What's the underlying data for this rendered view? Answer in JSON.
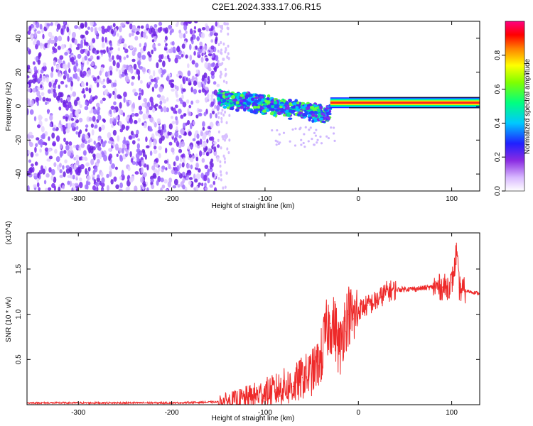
{
  "title": "C2E1.2024.333.17.06.R15",
  "colors": {
    "snr_line": "#ee2a2a",
    "scatter_purple": "#7b2bf0",
    "band_core": "#ff2020"
  },
  "chart_data": [
    {
      "type": "heatmap",
      "title": "C2E1.2024.333.17.06.R15",
      "xlabel": "Height of straight line (km)",
      "ylabel": "Frequency (Hz)",
      "xlim": [
        -355,
        130
      ],
      "ylim": [
        -50,
        50
      ],
      "xticks": [
        -300,
        -200,
        -100,
        0,
        100
      ],
      "yticks": [
        -40,
        -20,
        0,
        20,
        40
      ],
      "colorbar": {
        "label": "Normalized spectral amplitude",
        "range": [
          0,
          1
        ],
        "ticks": [
          "0.0",
          "0.2",
          "0.4",
          "0.6",
          "0.8"
        ],
        "colormap": "rainbow (white-violet-blue-cyan-green-yellow-red-magenta)"
      },
      "regions": [
        {
          "x_range": [
            -355,
            -150
          ],
          "freq_range": [
            -50,
            50
          ],
          "amplitude": "low (0.1-0.2), noise"
        },
        {
          "x_range": [
            -150,
            -30
          ],
          "freq_center_start": 5,
          "freq_center_end": -5,
          "spread": 6,
          "amplitude": "0.3-0.6"
        },
        {
          "x_range": [
            -30,
            130
          ],
          "freq_center": 2,
          "spread": 1.5,
          "amplitude": "0.8-1.0"
        }
      ]
    },
    {
      "type": "line",
      "xlabel": "Height of straight line (km)",
      "ylabel": "SNR (10 * v/v)",
      "y_multiplier": "(x10^4)",
      "xlim": [
        -355,
        130
      ],
      "ylim": [
        0,
        1.9
      ],
      "xticks": [
        -300,
        -200,
        -100,
        0,
        100
      ],
      "yticks": [
        "0.5",
        "1.0",
        "1.5"
      ],
      "series": [
        {
          "x": [
            -355,
            -300,
            -250,
            -200,
            -150,
            -130,
            -110,
            -100,
            -90,
            -80,
            -70,
            -60,
            -50,
            -40,
            -35,
            -30,
            -25,
            -20,
            -15,
            -10,
            -5,
            0,
            10,
            20,
            30,
            40,
            50,
            60,
            70,
            80,
            90,
            95,
            100,
            103,
            105,
            108,
            110,
            120,
            130
          ],
          "y": [
            0.02,
            0.02,
            0.02,
            0.02,
            0.03,
            0.05,
            0.1,
            0.13,
            0.15,
            0.2,
            0.2,
            0.3,
            0.35,
            0.5,
            0.8,
            0.9,
            0.85,
            0.6,
            0.9,
            1.0,
            0.95,
            1.05,
            1.1,
            1.15,
            1.25,
            1.27,
            1.28,
            1.28,
            1.29,
            1.3,
            1.3,
            1.3,
            1.35,
            1.5,
            1.7,
            1.3,
            1.27,
            1.25,
            1.23
          ]
        }
      ]
    }
  ]
}
